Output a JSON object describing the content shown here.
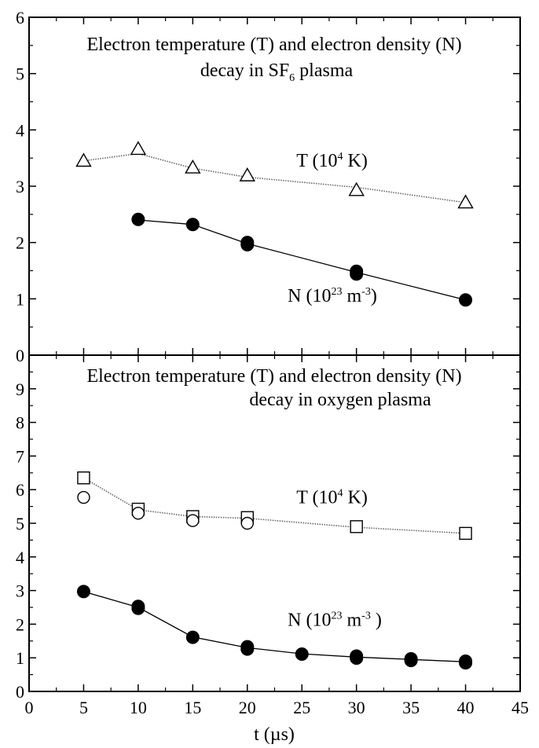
{
  "chart_data": [
    {
      "type": "scatter",
      "title_line1": "Electron temperature (T) and electron density (N)",
      "title_line2": "decay in SF",
      "title_line2_sub": "6",
      "title_line2_end": " plasma",
      "xlim": [
        0,
        45
      ],
      "ylim": [
        0,
        6
      ],
      "y_ticks": [
        0,
        1,
        2,
        3,
        4,
        5,
        6
      ],
      "series": [
        {
          "marker": "triangle-open",
          "line_style": "dotted",
          "x": [
            5,
            10,
            15,
            20,
            30,
            40
          ],
          "y": [
            3.45,
            3.66,
            3.33,
            3.19,
            2.93,
            2.71
          ],
          "fit_y": [
            3.45,
            3.58,
            3.32,
            3.16,
            2.98,
            2.71
          ]
        },
        {
          "marker": "circle-filled",
          "line_style": "solid",
          "x": [
            10,
            15,
            20,
            20,
            30,
            30,
            40
          ],
          "y": [
            2.41,
            2.32,
            2.0,
            1.96,
            1.49,
            1.44,
            0.98
          ],
          "fit_x": [
            10,
            15,
            20,
            30,
            40
          ],
          "fit_y": [
            2.4,
            2.32,
            1.98,
            1.47,
            0.98
          ]
        }
      ],
      "annotations": [
        {
          "text": "T (10",
          "sup": "4",
          "after": " K)",
          "at_x": 24.5,
          "at_y": 3.35
        },
        {
          "text": "N (10",
          "sup": "23",
          "after": " m",
          "sup2": "-3",
          "after2": ")",
          "at_x": 23.7,
          "at_y": 0.95
        }
      ]
    },
    {
      "type": "scatter",
      "title_line1": "Electron temperature (T) and electron density (N)",
      "title_line2": "decay in oxygen plasma",
      "xlim": [
        0,
        45
      ],
      "ylim": [
        0,
        10
      ],
      "y_ticks": [
        0,
        1,
        2,
        3,
        4,
        5,
        6,
        7,
        8,
        9
      ],
      "x_ticks": [
        0,
        5,
        10,
        15,
        20,
        25,
        30,
        35,
        40,
        45
      ],
      "xlabel": "t (µs)",
      "series": [
        {
          "marker": "square-open",
          "line_style": "dotted",
          "x": [
            5,
            10,
            15,
            20,
            30,
            40
          ],
          "y": [
            6.35,
            5.42,
            5.2,
            5.17,
            4.9,
            4.7
          ],
          "fit_y": [
            6.35,
            5.4,
            5.2,
            5.15,
            4.88,
            4.7
          ]
        },
        {
          "marker": "circle-open",
          "x": [
            5,
            10,
            15,
            20
          ],
          "y": [
            5.77,
            5.3,
            5.08,
            5.0
          ]
        },
        {
          "marker": "circle-filled",
          "line_style": "solid",
          "x": [
            5,
            10,
            10,
            15,
            20,
            20,
            25,
            30,
            30,
            35,
            35,
            40,
            40
          ],
          "y": [
            2.97,
            2.53,
            2.47,
            1.61,
            1.33,
            1.26,
            1.11,
            1.05,
            0.99,
            0.97,
            0.92,
            0.9,
            0.85
          ],
          "fit_x": [
            5,
            10,
            15,
            20,
            25,
            30,
            35,
            40
          ],
          "fit_y": [
            2.97,
            2.5,
            1.62,
            1.3,
            1.12,
            1.02,
            0.95,
            0.88
          ]
        }
      ],
      "annotations": [
        {
          "text": "T (10",
          "sup": "4",
          "after": " K)",
          "at_x": 24.5,
          "at_y": 5.6
        },
        {
          "text": "N (10",
          "sup": "23",
          "after": " m",
          "sup2": "-3",
          "after2": " )",
          "at_x": 23.7,
          "at_y": 1.95
        }
      ]
    }
  ]
}
